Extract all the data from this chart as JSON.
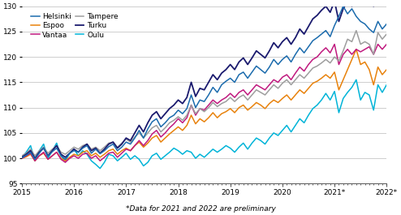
{
  "footnote": "*Data for 2021 and 2022 are preliminary",
  "ylim": [
    95,
    130
  ],
  "yticks": [
    95,
    100,
    105,
    110,
    115,
    120,
    125,
    130
  ],
  "xtick_labels": [
    "2015",
    "2016",
    "2017",
    "2018",
    "2019",
    "2020",
    "2021*",
    "2022*"
  ],
  "xtick_positions": [
    0,
    12,
    24,
    36,
    48,
    60,
    72,
    84
  ],
  "n_months": 85,
  "series": {
    "Helsinki": {
      "color": "#1B6BAD",
      "lw": 1.1,
      "data": [
        100.1,
        100.6,
        101.2,
        99.8,
        101.0,
        102.1,
        100.4,
        101.3,
        102.0,
        100.5,
        99.8,
        101.0,
        101.5,
        101.2,
        102.0,
        102.5,
        101.0,
        101.8,
        100.9,
        101.5,
        102.3,
        102.8,
        101.5,
        102.2,
        103.2,
        102.8,
        104.0,
        105.5,
        104.0,
        105.8,
        107.2,
        107.8,
        106.2,
        107.0,
        108.0,
        108.5,
        109.5,
        108.8,
        109.8,
        112.5,
        110.0,
        111.5,
        111.2,
        112.5,
        114.0,
        113.0,
        114.5,
        115.2,
        115.8,
        115.0,
        116.5,
        117.0,
        115.8,
        117.0,
        118.2,
        117.5,
        116.8,
        118.0,
        119.5,
        118.5,
        119.5,
        120.2,
        119.0,
        120.5,
        121.8,
        120.8,
        122.0,
        123.2,
        123.8,
        124.5,
        125.2,
        124.0,
        126.2,
        128.0,
        130.0,
        128.5,
        129.5,
        128.0,
        127.0,
        126.5,
        125.5,
        124.8,
        127.0,
        125.5,
        126.5
      ]
    },
    "Vantaa": {
      "color": "#C0197E",
      "lw": 1.1,
      "data": [
        100.0,
        100.5,
        101.0,
        99.5,
        100.5,
        101.2,
        99.8,
        100.5,
        101.2,
        99.8,
        99.2,
        100.0,
        100.5,
        100.0,
        100.8,
        101.0,
        100.0,
        100.5,
        99.5,
        100.2,
        101.0,
        101.2,
        100.2,
        101.0,
        101.8,
        101.5,
        102.5,
        103.5,
        102.5,
        103.5,
        104.8,
        105.5,
        104.2,
        105.0,
        106.0,
        106.8,
        107.8,
        107.0,
        108.0,
        110.5,
        108.5,
        109.8,
        109.5,
        110.5,
        111.5,
        110.8,
        111.5,
        112.0,
        112.8,
        112.0,
        113.0,
        113.5,
        112.5,
        113.5,
        114.5,
        114.0,
        113.5,
        114.5,
        115.5,
        115.0,
        116.0,
        116.5,
        115.5,
        116.8,
        118.0,
        117.2,
        118.5,
        119.5,
        120.0,
        121.0,
        121.8,
        120.8,
        122.5,
        118.5,
        120.5,
        121.5,
        120.5,
        121.5,
        121.0,
        121.5,
        122.0,
        120.5,
        122.5,
        121.5,
        122.5
      ]
    },
    "Turku": {
      "color": "#1A1A6E",
      "lw": 1.3,
      "data": [
        100.2,
        100.8,
        101.5,
        100.0,
        101.2,
        102.0,
        100.5,
        101.5,
        102.5,
        100.8,
        100.2,
        101.0,
        101.8,
        101.2,
        102.2,
        102.8,
        101.5,
        102.0,
        101.0,
        101.8,
        102.8,
        103.2,
        102.0,
        102.8,
        104.0,
        103.5,
        105.0,
        106.5,
        105.2,
        107.0,
        108.5,
        109.2,
        107.8,
        108.8,
        109.8,
        110.5,
        111.5,
        110.8,
        112.0,
        115.0,
        112.2,
        113.8,
        113.5,
        115.0,
        116.5,
        115.5,
        116.8,
        117.5,
        118.5,
        117.5,
        119.0,
        119.8,
        118.5,
        119.8,
        121.2,
        120.5,
        119.8,
        121.2,
        122.8,
        121.8,
        123.0,
        123.8,
        122.5,
        123.8,
        125.5,
        124.5,
        126.0,
        127.5,
        128.2,
        129.2,
        130.0,
        128.8,
        131.0,
        127.0,
        129.5,
        131.0,
        130.0,
        131.5,
        130.5,
        131.0,
        131.5,
        130.0,
        132.0,
        130.5,
        131.5
      ]
    },
    "Espoo": {
      "color": "#E8820C",
      "lw": 1.1,
      "data": [
        100.0,
        100.3,
        100.8,
        99.5,
        100.5,
        101.0,
        99.8,
        100.5,
        101.2,
        100.0,
        99.5,
        100.2,
        100.8,
        100.5,
        101.2,
        101.5,
        100.5,
        101.0,
        100.2,
        100.8,
        101.5,
        101.8,
        100.8,
        101.5,
        102.0,
        101.5,
        102.5,
        103.2,
        102.2,
        103.0,
        104.0,
        104.5,
        103.2,
        104.0,
        104.8,
        105.5,
        106.2,
        105.5,
        106.5,
        108.5,
        106.8,
        107.8,
        107.2,
        108.0,
        109.0,
        108.0,
        108.8,
        109.2,
        109.8,
        109.0,
        110.0,
        110.5,
        109.5,
        110.2,
        111.0,
        110.5,
        109.8,
        110.8,
        111.5,
        111.0,
        111.8,
        112.5,
        111.5,
        112.5,
        113.5,
        112.8,
        113.8,
        114.8,
        115.2,
        115.8,
        116.5,
        115.8,
        117.0,
        113.5,
        115.5,
        117.5,
        119.5,
        121.5,
        118.5,
        119.0,
        117.5,
        114.5,
        118.0,
        116.5,
        117.5
      ]
    },
    "Tampere": {
      "color": "#9E9E9E",
      "lw": 1.1,
      "data": [
        100.5,
        101.0,
        101.8,
        100.5,
        101.5,
        102.2,
        101.0,
        101.8,
        102.5,
        101.2,
        100.8,
        101.5,
        102.2,
        101.8,
        102.5,
        102.8,
        101.8,
        102.2,
        101.5,
        102.2,
        103.0,
        103.2,
        102.2,
        103.0,
        103.8,
        103.2,
        104.2,
        105.0,
        104.0,
        105.0,
        106.0,
        106.5,
        105.2,
        106.0,
        107.0,
        107.5,
        108.2,
        107.5,
        108.5,
        110.5,
        108.8,
        109.8,
        109.2,
        110.0,
        111.0,
        110.2,
        110.8,
        111.2,
        112.0,
        111.2,
        112.0,
        112.5,
        111.5,
        112.5,
        113.5,
        113.0,
        112.5,
        113.5,
        114.5,
        113.8,
        114.8,
        115.5,
        114.5,
        115.5,
        116.5,
        115.8,
        116.8,
        117.8,
        118.2,
        118.8,
        119.5,
        118.8,
        120.0,
        119.2,
        121.2,
        123.5,
        123.0,
        125.2,
        122.5,
        123.0,
        122.5,
        120.5,
        124.8,
        123.5,
        124.5
      ]
    },
    "Oulu": {
      "color": "#00B4D8",
      "lw": 1.1,
      "data": [
        100.2,
        101.2,
        102.5,
        99.5,
        101.5,
        102.8,
        100.0,
        101.5,
        103.0,
        100.5,
        99.5,
        101.0,
        101.8,
        100.5,
        101.5,
        100.8,
        99.5,
        98.8,
        98.0,
        99.2,
        100.8,
        100.5,
        99.5,
        100.2,
        101.0,
        99.8,
        100.5,
        99.8,
        98.5,
        99.2,
        100.5,
        101.0,
        99.8,
        100.5,
        101.2,
        102.0,
        101.5,
        100.8,
        101.5,
        101.2,
        100.0,
        100.8,
        100.2,
        101.0,
        101.8,
        101.2,
        101.8,
        102.5,
        102.0,
        101.2,
        102.2,
        103.0,
        101.8,
        103.0,
        104.0,
        103.5,
        102.8,
        104.0,
        105.0,
        104.5,
        105.5,
        106.5,
        105.2,
        106.5,
        107.8,
        107.0,
        108.5,
        109.8,
        110.5,
        111.5,
        112.8,
        111.5,
        113.2,
        109.0,
        111.8,
        113.0,
        114.0,
        115.5,
        111.5,
        113.0,
        112.5,
        109.5,
        114.5,
        113.0,
        114.5
      ]
    }
  },
  "legend_order": [
    "Helsinki",
    "Espoo",
    "Vantaa",
    "Tampere",
    "Turku",
    "Oulu"
  ],
  "bg_color": "#FFFFFF",
  "grid_color": "#BBBBBB"
}
